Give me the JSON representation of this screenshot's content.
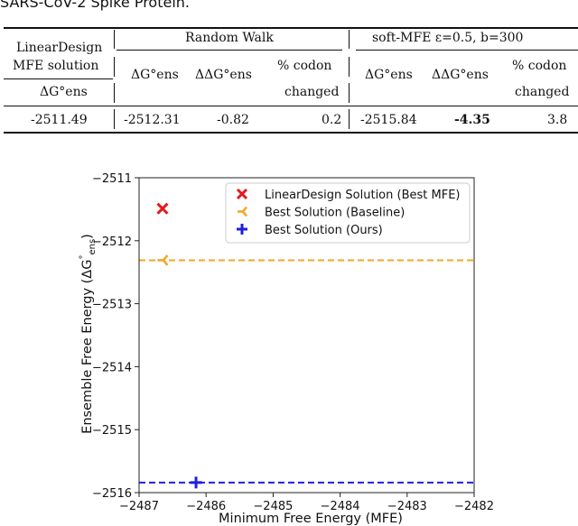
{
  "caption": "SARS-CoV-2 Spike Protein.",
  "table": {
    "col_linear_line1": "LinearDesign",
    "col_linear_line2": "MFE solution",
    "col_linear_sub": "ΔG°ens",
    "group_random": "Random Walk",
    "group_soft": "soft-MFE ε=0.5,  b=300",
    "sub_dg": "ΔG°ens",
    "sub_ddg": "ΔΔG°ens",
    "sub_codon_line1": "% codon",
    "sub_codon_line2": "changed",
    "row": {
      "linear_dg": "-2511.49",
      "rw_dg": "-2512.31",
      "rw_ddg": "-0.82",
      "rw_codon": "0.2",
      "soft_dg": "-2515.84",
      "soft_ddg": "-4.35",
      "soft_codon": "3.8"
    }
  },
  "chart_data": {
    "type": "scatter",
    "xlabel": "Minimum Free Energy (MFE)",
    "ylabel": "Ensemble Free Energy (ΔG°ens)",
    "xlim": [
      -2487,
      -2482
    ],
    "ylim": [
      -2516,
      -2511
    ],
    "xticks": [
      -2487,
      -2486,
      -2485,
      -2484,
      -2483,
      -2482
    ],
    "yticks": [
      -2511,
      -2512,
      -2513,
      -2514,
      -2515,
      -2516
    ],
    "xtick_labels": [
      "−2487",
      "−2486",
      "−2485",
      "−2484",
      "−2483",
      "−2482"
    ],
    "ytick_labels": [
      "−2511",
      "−2512",
      "−2513",
      "−2514",
      "−2515",
      "−2516"
    ],
    "legend_position": "top-right",
    "series": [
      {
        "name": "LinearDesign Solution (Best MFE)",
        "marker": "x",
        "color": "#e31a1c",
        "points": [
          {
            "x": -2486.65,
            "y": -2511.49
          }
        ]
      },
      {
        "name": "Best Solution (Baseline)",
        "marker": "tri_left",
        "color": "#f5a623",
        "points": [
          {
            "x": -2486.65,
            "y": -2512.31
          }
        ],
        "hline": -2512.31
      },
      {
        "name": "Best Solution (Ours)",
        "marker": "plus",
        "color": "#1f1fe0",
        "points": [
          {
            "x": -2486.15,
            "y": -2515.84
          }
        ],
        "hline": -2515.84
      }
    ]
  }
}
